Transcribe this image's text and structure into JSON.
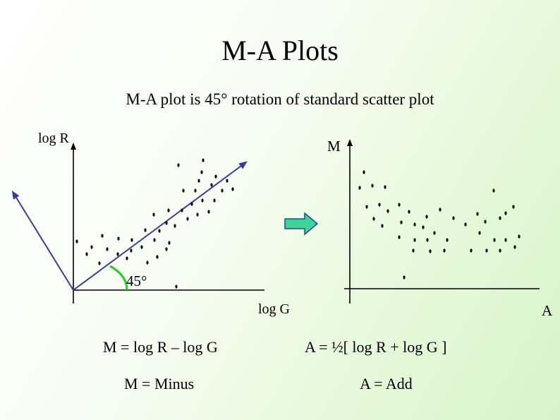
{
  "title": "M-A Plots",
  "subtitle": "M-A plot is 45° rotation of standard scatter plot",
  "left_plot": {
    "y_axis_label": "log R",
    "x_axis_label": "log G",
    "angle_label": "45°"
  },
  "right_plot": {
    "y_axis_label": "M",
    "x_axis_label": "A"
  },
  "formulas": {
    "m_formula": "M = log R – log G",
    "a_formula": "A = ½[ log R + log G ]",
    "m_definition": "M = Minus",
    "a_definition": "A = Add"
  },
  "colors": {
    "axis": "#000000",
    "rotated_axis": "#3b3b9e",
    "angle_arc": "#22cc22",
    "arrow_fill": "#3dd39a",
    "arrow_stroke": "#1f4f8f"
  },
  "arrow_icon": "right-arrow-icon"
}
